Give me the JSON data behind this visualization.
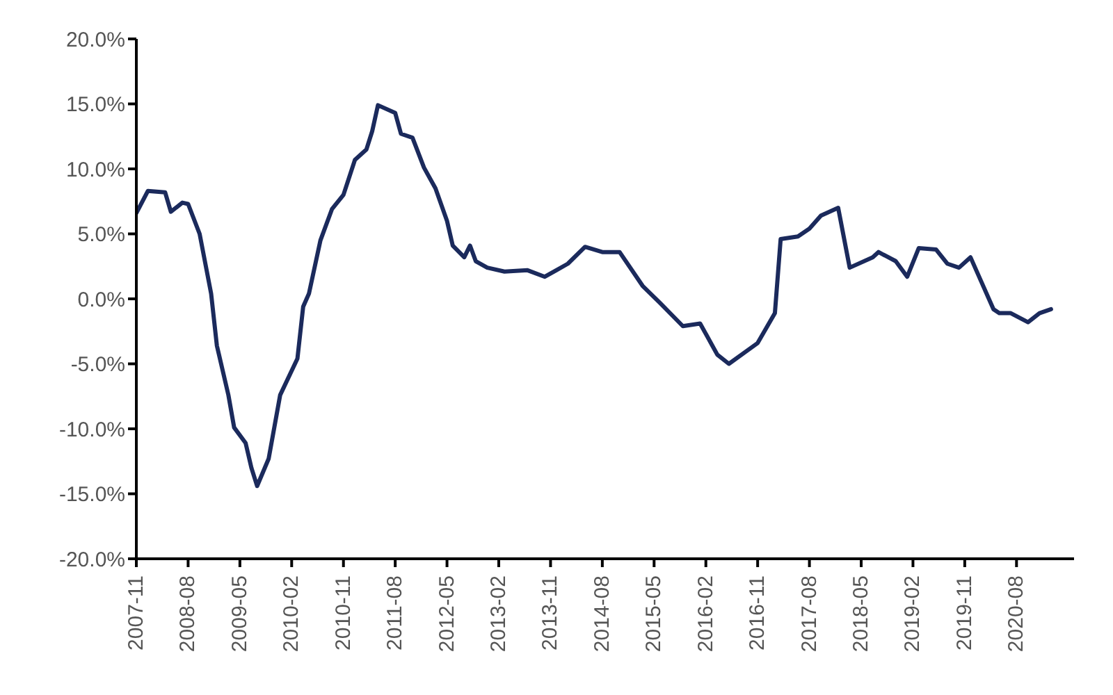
{
  "chart_data": {
    "type": "line",
    "x": [
      "2007-11",
      "2008-01",
      "2008-04",
      "2008-05",
      "2008-07",
      "2008-08",
      "2008-10",
      "2008-12",
      "2009-01",
      "2009-03",
      "2009-04",
      "2009-06",
      "2009-07",
      "2009-08",
      "2009-10",
      "2009-12",
      "2010-03",
      "2010-04",
      "2010-05",
      "2010-07",
      "2010-09",
      "2010-11",
      "2011-01",
      "2011-03",
      "2011-04",
      "2011-05",
      "2011-08",
      "2011-09",
      "2011-11",
      "2012-01",
      "2012-03",
      "2012-05",
      "2012-06",
      "2012-08",
      "2012-09",
      "2012-10",
      "2012-12",
      "2013-03",
      "2013-07",
      "2013-10",
      "2013-12",
      "2014-02",
      "2014-05",
      "2014-08",
      "2014-11",
      "2015-03",
      "2015-06",
      "2015-10",
      "2016-01",
      "2016-04",
      "2016-06",
      "2016-11",
      "2017-02",
      "2017-03",
      "2017-06",
      "2017-08",
      "2017-10",
      "2017-12",
      "2018-01",
      "2018-03",
      "2018-07",
      "2018-08",
      "2018-11",
      "2019-01",
      "2019-03",
      "2019-06",
      "2019-08",
      "2019-10",
      "2019-12",
      "2020-01",
      "2020-04",
      "2020-05",
      "2020-07",
      "2020-10",
      "2020-12",
      "2021-02"
    ],
    "series": [
      {
        "color": "#1b2a5c",
        "values": [
          6.6,
          8.3,
          8.2,
          6.7,
          7.4,
          7.3,
          5.0,
          0.4,
          -3.6,
          -7.4,
          -9.9,
          -11.1,
          -13.0,
          -14.4,
          -12.3,
          -7.4,
          -4.6,
          -0.6,
          0.4,
          4.5,
          6.9,
          8.0,
          10.7,
          11.5,
          12.9,
          14.9,
          14.3,
          12.7,
          12.4,
          10.1,
          8.5,
          6.0,
          4.1,
          3.2,
          4.1,
          2.9,
          2.4,
          2.1,
          2.2,
          1.7,
          2.2,
          2.7,
          4.0,
          3.6,
          3.6,
          1.0,
          -0.3,
          -2.1,
          -1.9,
          -4.3,
          -5.0,
          -3.4,
          -1.1,
          4.6,
          4.8,
          5.4,
          6.4,
          6.8,
          7.0,
          2.4,
          3.2,
          3.6,
          2.9,
          1.7,
          3.9,
          3.8,
          2.7,
          2.4,
          3.2,
          2.2,
          -0.8,
          -1.1,
          -1.1,
          -1.8,
          -1.1,
          -0.8
        ]
      }
    ],
    "xlim": [
      "2007-11",
      "2021-06"
    ],
    "xticks": [
      "2007-11",
      "2008-08",
      "2009-05",
      "2010-02",
      "2010-11",
      "2011-08",
      "2012-05",
      "2013-02",
      "2013-11",
      "2014-08",
      "2015-05",
      "2016-02",
      "2016-11",
      "2017-08",
      "2018-05",
      "2019-02",
      "2019-11",
      "2020-08"
    ],
    "ylim": [
      -20,
      20
    ],
    "yticks": [
      {
        "value": -20,
        "label": "-20.0%"
      },
      {
        "value": -15,
        "label": "-15.0%"
      },
      {
        "value": -10,
        "label": "-10.0%"
      },
      {
        "value": -5,
        "label": "-5.0%"
      },
      {
        "value": 0,
        "label": "0.0%"
      },
      {
        "value": 5,
        "label": "5.0%"
      },
      {
        "value": 10,
        "label": "10.0%"
      },
      {
        "value": 15,
        "label": "15.0%"
      },
      {
        "value": 20,
        "label": "20.0%"
      }
    ],
    "grid": false,
    "legend": false,
    "marker": "none",
    "line_style": "solid"
  }
}
